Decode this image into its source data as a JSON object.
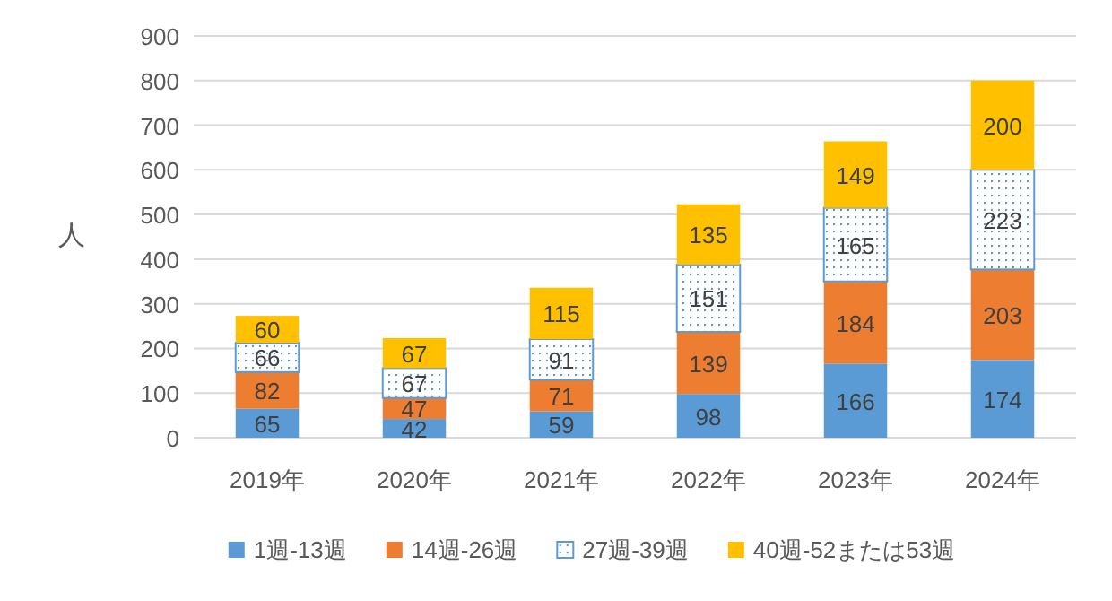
{
  "chart_data": {
    "type": "bar",
    "stacked": true,
    "ylabel": "人",
    "categories": [
      "2019年",
      "2020年",
      "2021年",
      "2022年",
      "2023年",
      "2024年"
    ],
    "series": [
      {
        "name": "1週-13週",
        "color": "#5b9bd5",
        "values": [
          65,
          42,
          59,
          98,
          166,
          174
        ]
      },
      {
        "name": "14週-26週",
        "color": "#ed7d31",
        "values": [
          82,
          47,
          71,
          139,
          184,
          203
        ]
      },
      {
        "name": "27週-39週",
        "color": "#5b9bd5",
        "values": [
          66,
          67,
          91,
          151,
          165,
          223
        ]
      },
      {
        "name": "40週-52または53週",
        "color": "#ffc000",
        "values": [
          60,
          67,
          115,
          135,
          149,
          200
        ]
      }
    ],
    "ylim": [
      0,
      900
    ],
    "yticks": [
      0,
      100,
      200,
      300,
      400,
      500,
      600,
      700,
      800,
      900
    ],
    "grid": "y",
    "legend": "bottom",
    "data_labels": true
  }
}
